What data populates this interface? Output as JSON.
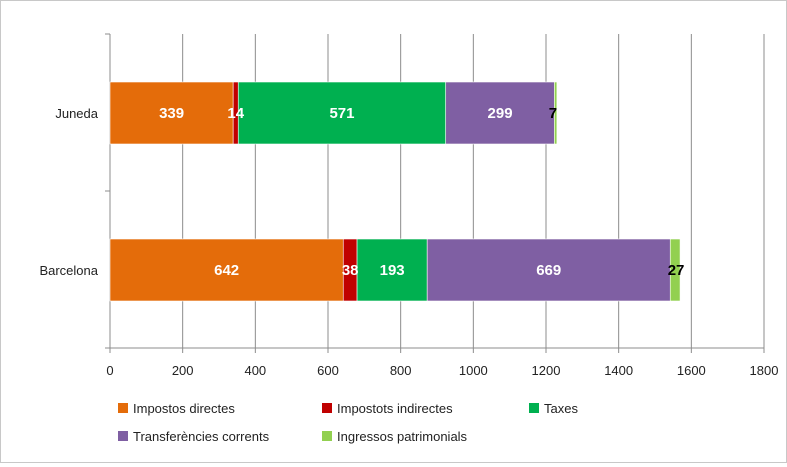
{
  "chart_data": {
    "type": "bar",
    "orientation": "horizontal",
    "stacked": true,
    "categories": [
      "Juneda",
      "Barcelona"
    ],
    "series": [
      {
        "name": "Impostos directes",
        "values": [
          339,
          642
        ],
        "color": "#e46c0a",
        "label_color": "#ffffff"
      },
      {
        "name": "Impostots indirectes",
        "values": [
          14,
          38
        ],
        "color": "#c00000",
        "label_color": "#ffffff"
      },
      {
        "name": "Taxes",
        "values": [
          571,
          193
        ],
        "color": "#00b050",
        "label_color": "#ffffff"
      },
      {
        "name": "Transferències corrents",
        "values": [
          299,
          669
        ],
        "color": "#7f5fa3",
        "label_color": "#ffffff"
      },
      {
        "name": "Ingressos patrimonials",
        "values": [
          7,
          27
        ],
        "color": "#92d050",
        "label_color": "#000000"
      }
    ],
    "xlim": [
      0,
      1800
    ],
    "xticks": [
      "0",
      "200",
      "400",
      "600",
      "800",
      "1000",
      "1200",
      "1400",
      "1600",
      "1800"
    ],
    "grid": true,
    "legend_position": "bottom"
  }
}
